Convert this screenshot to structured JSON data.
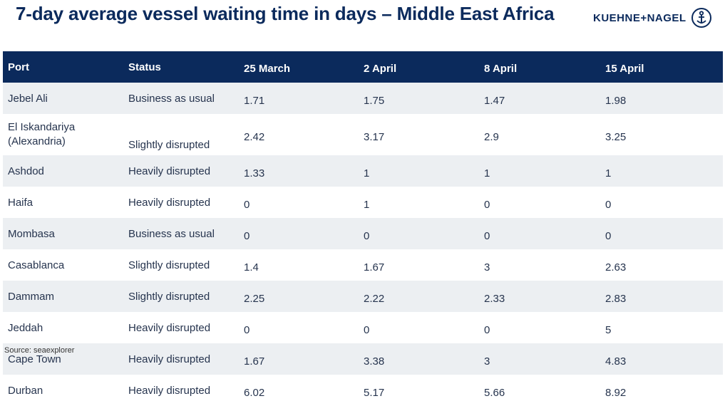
{
  "header": {
    "title": "7-day average vessel waiting time in days – Middle East Africa",
    "brand": "KUEHNE+NAGEL",
    "brand_color": "#0b2a5c"
  },
  "table": {
    "columns": [
      "Port",
      "Status",
      "25 March",
      "2 April",
      "8 April",
      "15 April"
    ],
    "rows": [
      {
        "port": "Jebel Ali",
        "status": "Business as usual",
        "v": [
          "1.71",
          "1.75",
          "1.47",
          "1.98"
        ]
      },
      {
        "port": "El Iskandariya (Alexandria)",
        "status": "Slightly disrupted",
        "v": [
          "2.42",
          "3.17",
          "2.9",
          "3.25"
        ]
      },
      {
        "port": "Ashdod",
        "status": "Heavily disrupted",
        "v": [
          "1.33",
          "1",
          "1",
          "1"
        ]
      },
      {
        "port": "Haifa",
        "status": "Heavily disrupted",
        "v": [
          "0",
          "1",
          "0",
          "0"
        ]
      },
      {
        "port": "Mombasa",
        "status": "Business as usual",
        "v": [
          "0",
          "0",
          "0",
          "0"
        ]
      },
      {
        "port": "Casablanca",
        "status": "Slightly disrupted",
        "v": [
          "1.4",
          "1.67",
          "3",
          "2.63"
        ]
      },
      {
        "port": "Dammam",
        "status": "Slightly disrupted",
        "v": [
          "2.25",
          "2.22",
          "2.33",
          "2.83"
        ]
      },
      {
        "port": "Jeddah",
        "status": "Heavily disrupted",
        "v": [
          "0",
          "0",
          "0",
          "5"
        ]
      },
      {
        "port": "Cape Town",
        "status": "Heavily disrupted",
        "v": [
          "1.67",
          "3.38",
          "3",
          "4.83"
        ]
      },
      {
        "port": "Durban",
        "status": "Heavily disrupted",
        "v": [
          "6.02",
          "5.17",
          "5.66",
          "8.92"
        ]
      }
    ]
  },
  "footer": {
    "source": "Source: seaexplorer"
  }
}
